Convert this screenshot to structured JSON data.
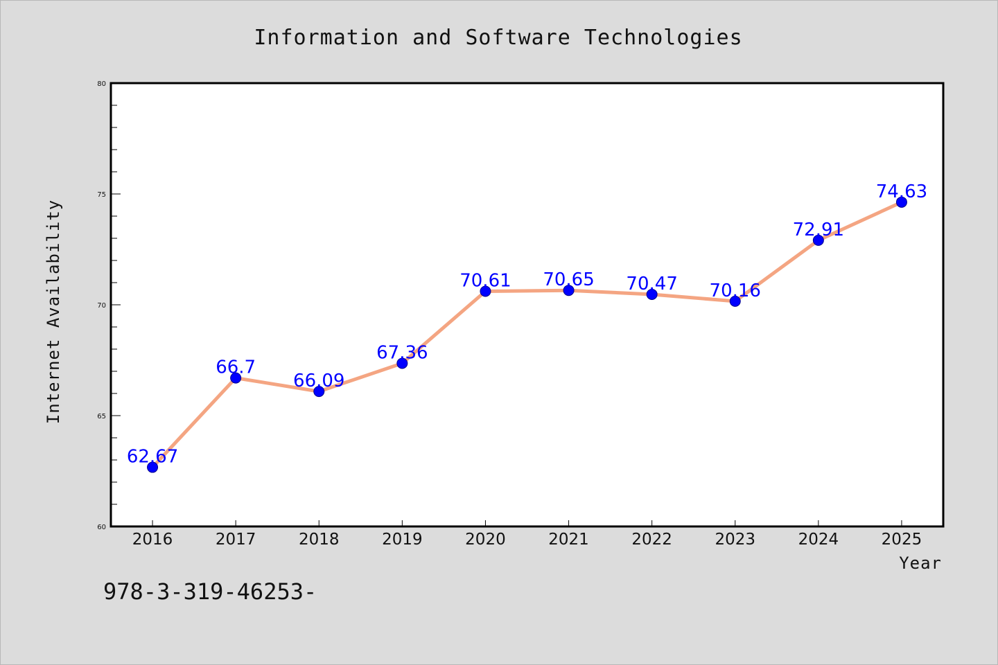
{
  "chart_data": {
    "type": "line",
    "title": "Information and Software Technologies",
    "xlabel": "Year",
    "ylabel": "Internet Availability",
    "categories": [
      "2016",
      "2017",
      "2018",
      "2019",
      "2020",
      "2021",
      "2022",
      "2023",
      "2024",
      "2025"
    ],
    "series": [
      {
        "values": [
          62.67,
          66.7,
          66.09,
          67.36,
          70.61,
          70.65,
          70.47,
          70.16,
          72.91,
          74.63
        ],
        "data_labels": [
          "62.67",
          "66.7",
          "66.09",
          "67.36",
          "70.61",
          "70.65",
          "70.47",
          "70.16",
          "72.91",
          "74.63"
        ]
      }
    ],
    "ylim": [
      60,
      80
    ],
    "yticks": [
      "60",
      "65",
      "70",
      "75",
      "80"
    ],
    "grid": false,
    "legend": "none",
    "colors": {
      "line": "#f4a582",
      "marker": "#0000ff",
      "data_label": "#0000ff",
      "plot_background": "#ffffff",
      "figure_background": "#dcdcdc"
    }
  },
  "footnote": "978-3-319-46253-"
}
